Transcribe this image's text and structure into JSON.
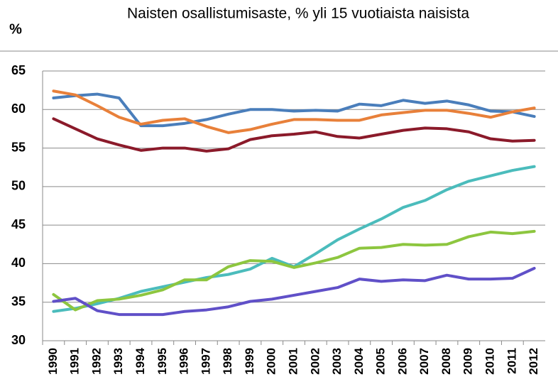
{
  "chart_data": {
    "type": "line",
    "title": "Naisten osallistumisaste, % yli 15 vuotiaista naisista",
    "y_label": "%",
    "categories": [
      "1990",
      "1991",
      "1992",
      "1993",
      "1994",
      "1995",
      "1996",
      "1997",
      "1998",
      "1999",
      "2000",
      "2001",
      "2002",
      "2003",
      "2004",
      "2005",
      "2006",
      "2007",
      "2008",
      "2009",
      "2010",
      "2011",
      "2012"
    ],
    "series": [
      {
        "color": "#4a7ebb",
        "values": [
          61.5,
          61.8,
          62.0,
          61.5,
          57.9,
          57.9,
          58.2,
          58.7,
          59.4,
          60.0,
          60.0,
          59.8,
          59.9,
          59.8,
          60.7,
          60.5,
          61.2,
          60.8,
          61.1,
          60.6,
          59.8,
          59.7,
          59.1
        ]
      },
      {
        "color": "#e8803a",
        "values": [
          62.4,
          61.9,
          60.5,
          59.0,
          58.1,
          58.6,
          58.8,
          57.8,
          57.0,
          57.4,
          58.1,
          58.7,
          58.7,
          58.6,
          58.6,
          59.3,
          59.6,
          59.9,
          59.9,
          59.5,
          59.0,
          59.7,
          60.2
        ]
      },
      {
        "color": "#8b1a2a",
        "values": [
          58.8,
          57.5,
          56.2,
          55.4,
          54.7,
          55.0,
          55.0,
          54.6,
          54.9,
          56.1,
          56.6,
          56.8,
          57.1,
          56.5,
          56.3,
          56.8,
          57.3,
          57.6,
          57.5,
          57.1,
          56.2,
          55.9,
          56.0
        ]
      },
      {
        "color": "#4bbcbc",
        "values": [
          33.8,
          34.2,
          34.8,
          35.5,
          36.4,
          37.0,
          37.6,
          38.2,
          38.6,
          39.3,
          40.7,
          39.6,
          41.3,
          43.1,
          44.5,
          45.8,
          47.3,
          48.2,
          49.6,
          50.7,
          51.4,
          52.1,
          52.6
        ]
      },
      {
        "color": "#8dc63f",
        "values": [
          36.0,
          34.0,
          35.2,
          35.4,
          35.9,
          36.6,
          37.9,
          37.9,
          39.6,
          40.4,
          40.3,
          39.5,
          40.1,
          40.8,
          42.0,
          42.1,
          42.5,
          42.4,
          42.5,
          43.5,
          44.1,
          43.9,
          44.2
        ]
      },
      {
        "color": "#6050c8",
        "values": [
          35.1,
          35.5,
          33.9,
          33.4,
          33.4,
          33.4,
          33.8,
          34.0,
          34.4,
          35.1,
          35.4,
          35.9,
          36.4,
          36.9,
          38.0,
          37.7,
          37.9,
          37.8,
          38.5,
          38.0,
          38.0,
          38.1,
          39.4
        ]
      }
    ],
    "ylim": [
      30,
      65
    ],
    "yticks": [
      30,
      35,
      40,
      45,
      50,
      55,
      60,
      65
    ],
    "grid": true
  }
}
